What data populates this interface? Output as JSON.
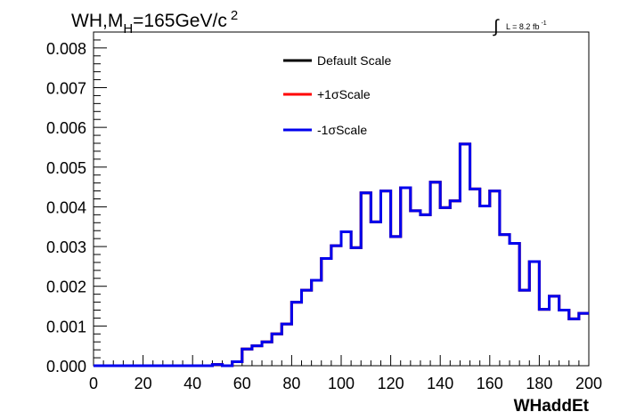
{
  "chart_data": {
    "type": "line",
    "title": {
      "prefix": "WH,M",
      "subscript": "H",
      "suffix": "=165GeV/c",
      "superscript": "2"
    },
    "lumi": {
      "symbol": "∫",
      "text": "L = 8.2 fb",
      "superscript": "-1"
    },
    "xlabel": "WHaddEt",
    "ylabel": "",
    "xlim": [
      0,
      200
    ],
    "ylim": [
      0,
      0.0084
    ],
    "x_ticks": [
      0,
      20,
      40,
      60,
      80,
      100,
      120,
      140,
      160,
      180,
      200
    ],
    "x_tick_labels": [
      "0",
      "20",
      "40",
      "60",
      "80",
      "100",
      "120",
      "140",
      "160",
      "180",
      "200"
    ],
    "y_ticks": [
      0,
      0.001,
      0.002,
      0.003,
      0.004,
      0.005,
      0.006,
      0.007,
      0.008
    ],
    "y_tick_labels": [
      "0.000",
      "0.001",
      "0.002",
      "0.003",
      "0.004",
      "0.005",
      "0.006",
      "0.007",
      "0.008"
    ],
    "bin_width": 4,
    "bin_edges_start": 0,
    "legend_position": "top-center",
    "grid": false,
    "series": [
      {
        "name": "Default Scale",
        "color": "#000000",
        "values": [
          0,
          0,
          0,
          0,
          0,
          0,
          0,
          0,
          0,
          0,
          0,
          0,
          3e-05,
          0,
          0.0001,
          0.00042,
          0.0005,
          0.0006,
          0.0008,
          0.00105,
          0.0016,
          0.0019,
          0.00215,
          0.0027,
          0.00302,
          0.00337,
          0.00297,
          0.00435,
          0.00362,
          0.0044,
          0.00325,
          0.00448,
          0.0039,
          0.0038,
          0.00462,
          0.00398,
          0.00415,
          0.00558,
          0.00445,
          0.00402,
          0.0044,
          0.0033,
          0.00308,
          0.0019,
          0.00262,
          0.00142,
          0.00175,
          0.0014,
          0.00118,
          0.00132
        ]
      },
      {
        "name": "+1σScale",
        "color": "#ff0000",
        "values": [
          0,
          0,
          0,
          0,
          0,
          0,
          0,
          0,
          0,
          0,
          0,
          0,
          3e-05,
          0,
          0.0001,
          0.00042,
          0.0005,
          0.0006,
          0.0008,
          0.00105,
          0.0016,
          0.0019,
          0.00215,
          0.0027,
          0.00302,
          0.00337,
          0.00297,
          0.00435,
          0.00362,
          0.0044,
          0.00325,
          0.00448,
          0.0039,
          0.0038,
          0.00462,
          0.00398,
          0.00415,
          0.00558,
          0.00445,
          0.00402,
          0.0044,
          0.0033,
          0.00308,
          0.0019,
          0.00262,
          0.00142,
          0.00175,
          0.0014,
          0.00118,
          0.00132
        ]
      },
      {
        "name": "-1σScale",
        "color": "#0000ee",
        "values": [
          0,
          0,
          0,
          0,
          0,
          0,
          0,
          0,
          0,
          0,
          0,
          0,
          3e-05,
          0,
          0.0001,
          0.00042,
          0.0005,
          0.0006,
          0.0008,
          0.00105,
          0.0016,
          0.0019,
          0.00215,
          0.0027,
          0.00302,
          0.00337,
          0.00297,
          0.00435,
          0.00362,
          0.0044,
          0.00325,
          0.00448,
          0.0039,
          0.0038,
          0.00462,
          0.00398,
          0.00415,
          0.00558,
          0.00445,
          0.00402,
          0.0044,
          0.0033,
          0.00308,
          0.0019,
          0.00262,
          0.00142,
          0.00175,
          0.0014,
          0.00118,
          0.00132
        ]
      }
    ]
  }
}
